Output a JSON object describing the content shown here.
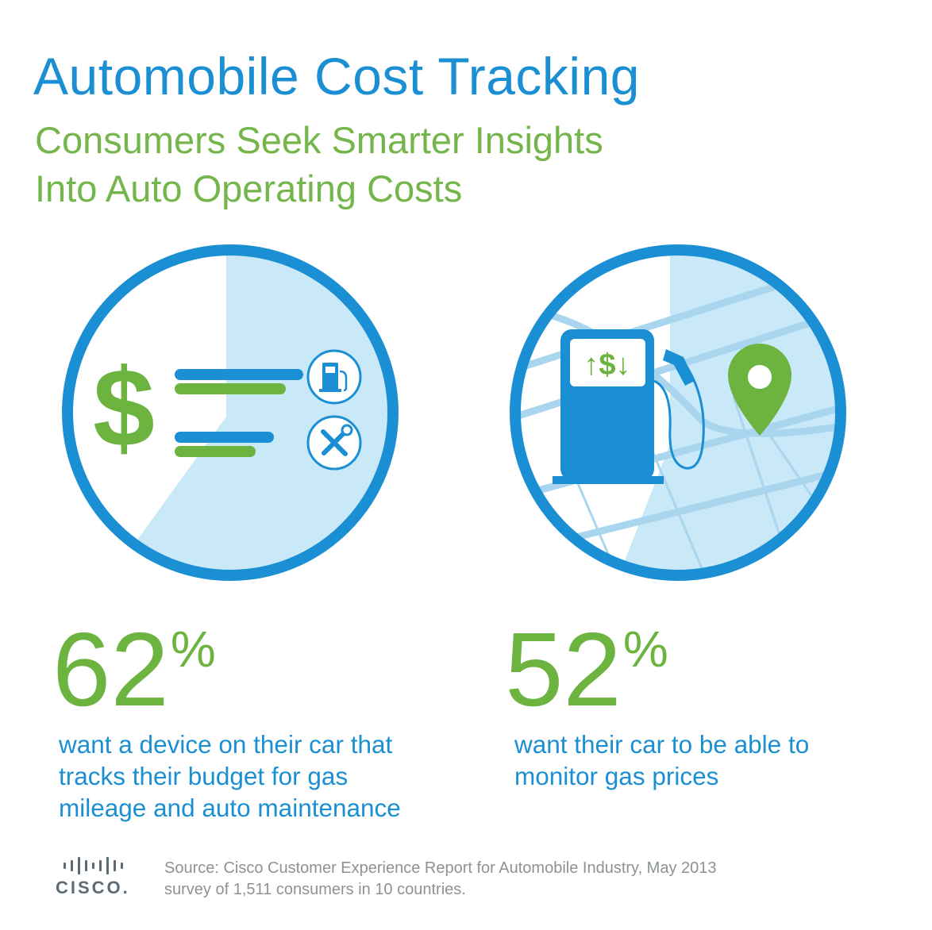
{
  "header": {
    "title": "Automobile Cost Tracking",
    "subtitle_line1": "Consumers Seek Smarter Insights",
    "subtitle_line2": "Into Auto Operating Costs"
  },
  "stats": [
    {
      "value": "62",
      "unit": "%",
      "desc_line1": "want a device on their car that",
      "desc_line2": "tracks their budget for gas",
      "desc_line3": "mileage and auto maintenance"
    },
    {
      "value": "52",
      "unit": "%",
      "desc_line1": "want their car to be able to",
      "desc_line2": "monitor gas prices"
    }
  ],
  "icons": {
    "left_circle": [
      "dollar-icon",
      "gas-pump-icon",
      "tools-icon"
    ],
    "right_circle": [
      "gas-pump-icon",
      "map-pin-icon"
    ],
    "pump_display": "↑$↓"
  },
  "footer": {
    "logo_text": "CISCO.",
    "source_line1": "Source: Cisco Customer Experience Report for Automobile Industry, May 2013",
    "source_line2": "survey of 1,511 consumers in 10 countries."
  },
  "colors": {
    "blue": "#1b8fd3",
    "green": "#6cb33f",
    "light_blue": "#c9e8f8",
    "gray": "#8c9296"
  }
}
